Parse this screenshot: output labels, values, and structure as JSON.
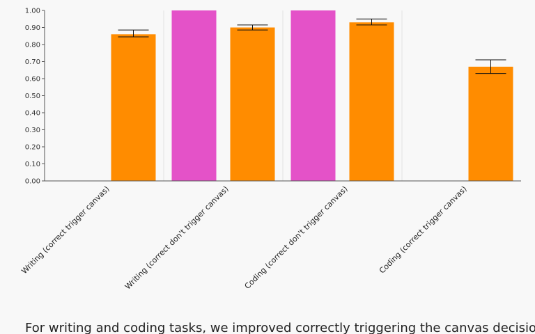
{
  "chart_data": {
    "type": "bar",
    "categories": [
      "Writing (correct trigger canvas)",
      "Writing (correct don't trigger canvas)",
      "Coding (correct don't trigger canvas)",
      "Coding (correct trigger canvas)"
    ],
    "series": [
      {
        "color": "#e452c8",
        "values": [
          null,
          1.0,
          1.0,
          null
        ],
        "error": null
      },
      {
        "color": "#ff8c00",
        "values": [
          0.86,
          0.9,
          0.93,
          0.67
        ],
        "error": [
          [
            0.845,
            0.885
          ],
          [
            0.885,
            0.915
          ],
          [
            0.915,
            0.95
          ],
          [
            0.63,
            0.71
          ]
        ]
      }
    ],
    "ylim": [
      0,
      1
    ],
    "yticks": [
      "0.00",
      "0.10",
      "0.20",
      "0.30",
      "0.40",
      "0.50",
      "0.60",
      "0.70",
      "0.80",
      "0.90",
      "1.00"
    ],
    "grid": "vertical separators between categories",
    "legend": "none"
  },
  "caption": "For writing and coding tasks, we improved correctly triggering the canvas decision"
}
